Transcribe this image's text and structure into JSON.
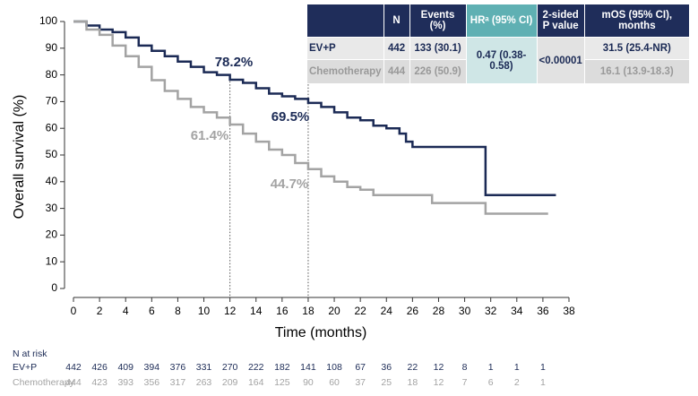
{
  "chart_data": {
    "type": "line",
    "step": true,
    "y_label": "Overall survival (%)",
    "x_label": "Time (months)",
    "xlim": [
      0,
      38
    ],
    "xticks": [
      0,
      2,
      4,
      6,
      8,
      10,
      12,
      14,
      16,
      18,
      20,
      22,
      24,
      26,
      28,
      30,
      32,
      34,
      36,
      38
    ],
    "ylim": [
      0,
      100
    ],
    "yticks": [
      0,
      10,
      20,
      30,
      40,
      50,
      60,
      70,
      80,
      90,
      100
    ],
    "reference_lines": [
      12,
      18
    ],
    "series": [
      {
        "name": "EV+P",
        "color": "#1b2a55",
        "x": [
          0,
          1,
          2,
          3,
          4,
          5,
          6,
          7,
          8,
          9,
          10,
          11,
          12,
          13,
          14,
          15,
          16,
          17,
          18,
          19,
          20,
          21,
          22,
          23,
          24,
          25,
          25.5,
          26,
          31.5,
          31.6,
          37
        ],
        "values": [
          100,
          98.5,
          97,
          96,
          94,
          91,
          89,
          87,
          85,
          83,
          81,
          80,
          78.2,
          77,
          75,
          73,
          72,
          71,
          69.5,
          68,
          66,
          64,
          63,
          61,
          60,
          58,
          55,
          53,
          53,
          35,
          35
        ]
      },
      {
        "name": "Chemotherapy",
        "color": "#a3a3a3",
        "x": [
          0,
          1,
          2,
          3,
          4,
          5,
          6,
          7,
          8,
          9,
          10,
          11,
          12,
          13,
          14,
          15,
          16,
          17,
          18,
          19,
          20,
          21,
          22,
          23,
          27,
          27.5,
          31.5,
          31.6,
          36.4
        ],
        "values": [
          100,
          97,
          95,
          91,
          87,
          83,
          78,
          74,
          71,
          68,
          66,
          64,
          61.4,
          58,
          55,
          52,
          50,
          47,
          44.7,
          42,
          40,
          38,
          37,
          35,
          35,
          32,
          32,
          28,
          28
        ]
      }
    ],
    "annotations": [
      "78.2%",
      "69.5%",
      "61.4%",
      "44.7%"
    ],
    "risk_table": {
      "title": "N at risk",
      "rows": [
        {
          "name": "EV+P",
          "values": [
            442,
            426,
            409,
            394,
            376,
            331,
            270,
            222,
            182,
            141,
            108,
            67,
            36,
            22,
            12,
            8,
            1,
            1,
            1
          ]
        },
        {
          "name": "Chemotherapy",
          "values": [
            444,
            423,
            393,
            356,
            317,
            263,
            209,
            164,
            125,
            90,
            60,
            37,
            25,
            18,
            12,
            7,
            6,
            2,
            1
          ]
        }
      ]
    },
    "summary_table": {
      "header": [
        "N",
        "Events (%)",
        "HRᵃ (95% CI)",
        "2-sided P value",
        "mOS (95% CI), months"
      ],
      "rows": [
        [
          "EV+P",
          "442",
          "133 (30.1)",
          "31.5 (25.4-NR)"
        ],
        [
          "Chemotherapy",
          "444",
          "226 (50.9)",
          "16.1 (13.9-18.3)"
        ]
      ],
      "hr": "0.47 (0.38-0.58)",
      "p_value": "<0.00001"
    }
  }
}
